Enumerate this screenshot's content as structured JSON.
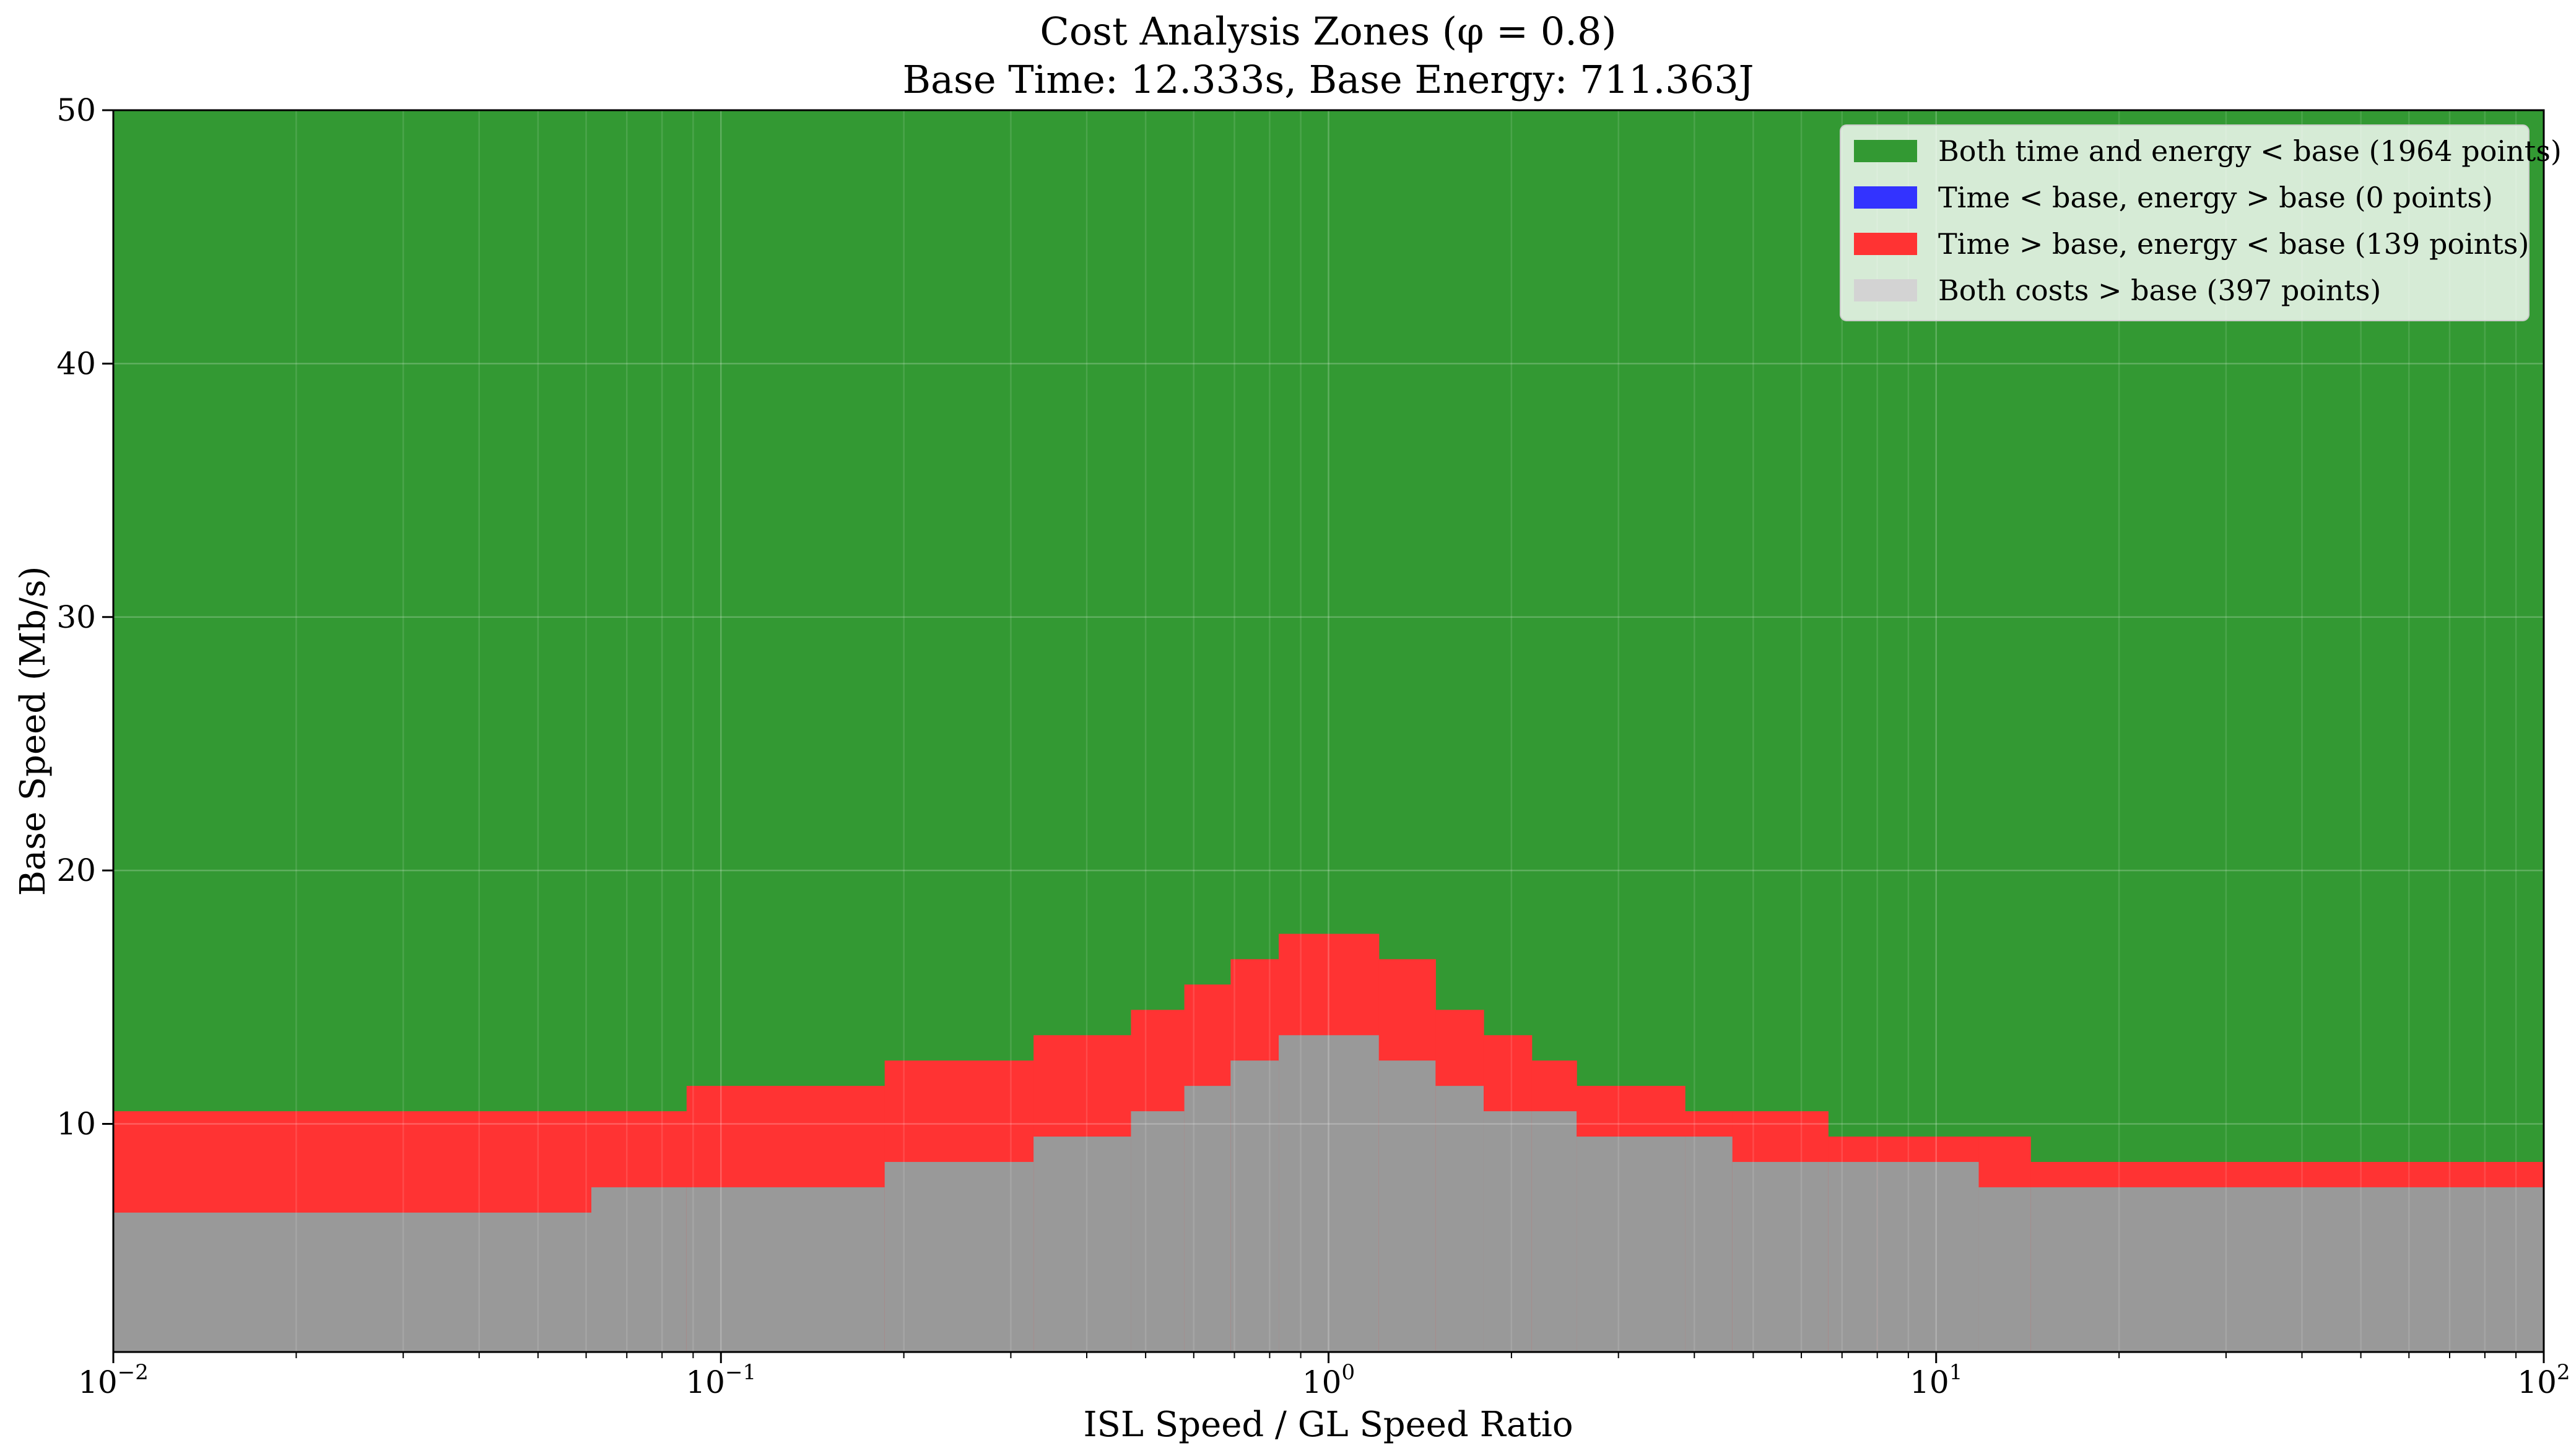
{
  "chart_data": {
    "type": "heatmap",
    "title_lines": [
      "Cost Analysis Zones (φ = 0.8)",
      "Base Time: 12.333s, Base Energy: 711.363J"
    ],
    "xlabel": "ISL Speed / GL Speed Ratio",
    "ylabel": "Base Speed (Mb/s)",
    "x_scale": "log",
    "xlim": [
      0.01,
      100
    ],
    "ylim": [
      1,
      50
    ],
    "x_ticks": [
      {
        "value": 0.01,
        "base": "10",
        "exp": "−2"
      },
      {
        "value": 0.1,
        "base": "10",
        "exp": "−1"
      },
      {
        "value": 1,
        "base": "10",
        "exp": "0"
      },
      {
        "value": 10,
        "base": "10",
        "exp": "1"
      },
      {
        "value": 100,
        "base": "10",
        "exp": "2"
      }
    ],
    "y_ticks": [
      {
        "value": 10,
        "label": "10"
      },
      {
        "value": 20,
        "label": "20"
      },
      {
        "value": 30,
        "label": "30"
      },
      {
        "value": 40,
        "label": "40"
      },
      {
        "value": 50,
        "label": "50"
      }
    ],
    "grid": true,
    "legend_position": "top-right",
    "zones": [
      {
        "name": "Both time and energy < base (1964 points)",
        "color": "#339933"
      },
      {
        "name": "Time < base, energy > base (0 points)",
        "color": "#3333ff"
      },
      {
        "name": "Time > base, energy < base (139 points)",
        "color": "#ff3333"
      },
      {
        "name": "Both costs > base (397 points)",
        "color": "#999999"
      }
    ],
    "legend_gray_swatch_color": "#d3d3d3",
    "boundaries": {
      "x_edges": [
        0.01,
        0.0612,
        0.0878,
        0.186,
        0.327,
        0.473,
        0.579,
        0.69,
        0.828,
        1.0,
        1.21,
        1.5,
        1.8,
        2.16,
        2.56,
        3.86,
        4.62,
        6.64,
        8.0,
        11.75,
        14.3,
        100
      ],
      "red_upper": [
        10.5,
        10.5,
        11.5,
        12.5,
        13.5,
        14.5,
        15.5,
        16.5,
        17.5,
        17.5,
        16.5,
        14.5,
        13.5,
        12.5,
        11.5,
        10.5,
        10.5,
        9.5,
        9.5,
        9.5,
        8.5
      ],
      "gray_upper": [
        6.5,
        7.5,
        7.5,
        8.5,
        9.5,
        10.5,
        11.5,
        12.5,
        13.5,
        13.5,
        12.5,
        11.5,
        10.5,
        10.5,
        9.5,
        9.5,
        8.5,
        8.5,
        8.5,
        7.5,
        7.5
      ]
    }
  }
}
